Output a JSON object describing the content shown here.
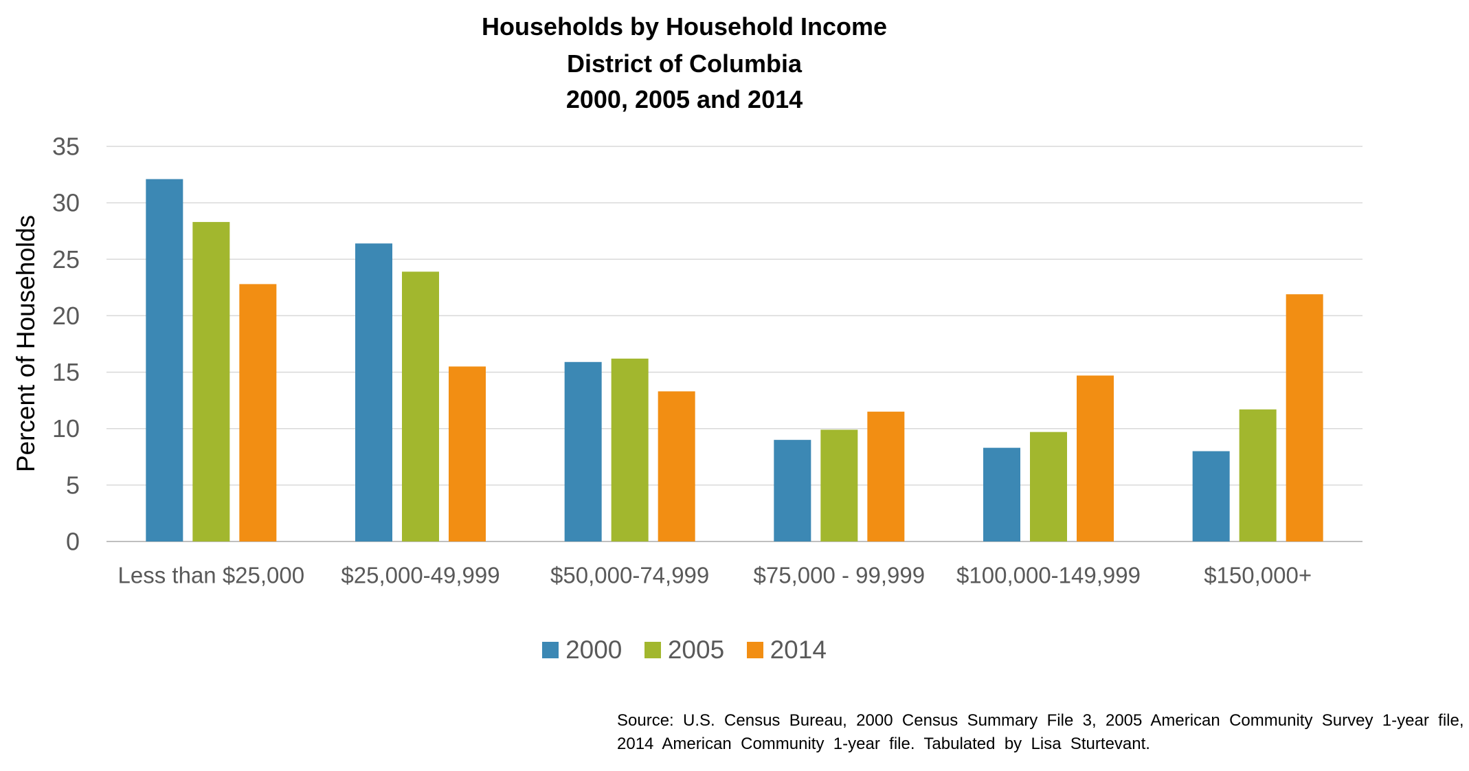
{
  "chart_data": {
    "type": "bar",
    "title_lines": [
      "Households by Household Income",
      "District of Columbia",
      "2000, 2005 and 2014"
    ],
    "xlabel": "",
    "ylabel": "Percent of Households",
    "ylim": [
      0,
      35
    ],
    "yticks": [
      0,
      5,
      10,
      15,
      20,
      25,
      30,
      35
    ],
    "grid": true,
    "legend_position": "bottom",
    "categories": [
      "Less than $25,000",
      "$25,000-49,999",
      "$50,000-74,999",
      "$75,000 - 99,999",
      "$100,000-149,999",
      "$150,000+"
    ],
    "series": [
      {
        "name": "2000",
        "color": "#3C88B4",
        "values": [
          32.1,
          26.4,
          15.9,
          9.0,
          8.3,
          8.0
        ]
      },
      {
        "name": "2005",
        "color": "#A2B72E",
        "values": [
          28.3,
          23.9,
          16.2,
          9.9,
          9.7,
          11.7
        ]
      },
      {
        "name": "2014",
        "color": "#F28E13",
        "values": [
          22.8,
          15.5,
          13.3,
          11.5,
          14.7,
          21.9
        ]
      }
    ]
  },
  "source": {
    "line1": "Source:  U.S.  Census  Bureau,  2000  Census  Summary  File  3,  2005  American  Community  Survey  1-year  file,",
    "line2": "2014  American  Community  1-year  file.  Tabulated  by  Lisa  Sturtevant."
  }
}
